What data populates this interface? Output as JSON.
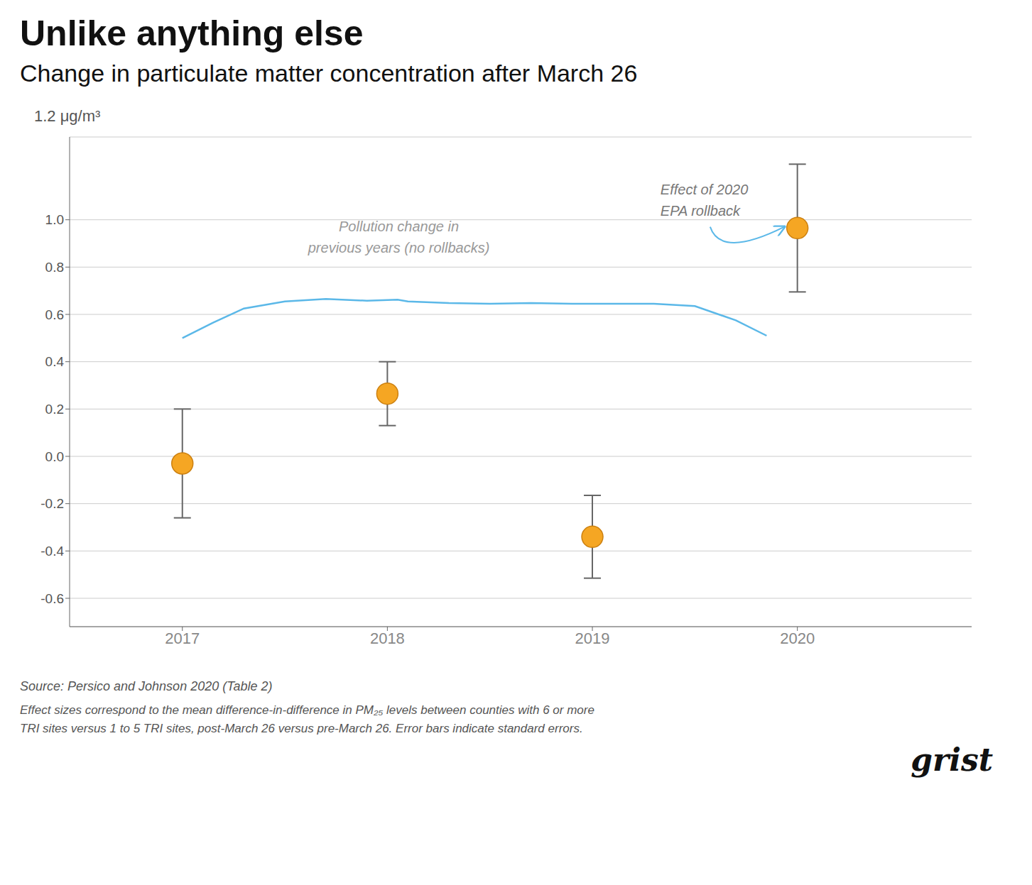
{
  "chart_data": {
    "type": "scatter",
    "title": "Unlike anything else",
    "subtitle": "Change in particulate matter concentration after March 26",
    "ylabel": "1.2 μg/m³",
    "xlim": [
      2016.45,
      2020.85
    ],
    "xticks": [
      2017,
      2018,
      2019,
      2020
    ],
    "ylim": [
      -0.72,
      1.35
    ],
    "yticks": [
      -0.6,
      -0.4,
      -0.2,
      {
        "value": 0,
        "label": "0.0"
      },
      0.2,
      0.4,
      0.6,
      0.8,
      {
        "value": 1,
        "label": "1.0"
      }
    ],
    "grid": true,
    "series": [
      {
        "type": "line",
        "color": "#5BB8E8",
        "x": [
          2017.0,
          2017.15,
          2017.3,
          2017.5,
          2017.7,
          2017.9,
          2018.05,
          2018.1,
          2018.3,
          2018.5,
          2018.7,
          2018.9,
          2019.1,
          2019.3,
          2019.5,
          2019.7,
          2019.85
        ],
        "values": [
          0.5,
          0.565,
          0.625,
          0.655,
          0.665,
          0.658,
          0.662,
          0.655,
          0.648,
          0.645,
          0.648,
          0.645,
          0.645,
          0.645,
          0.635,
          0.575,
          0.51
        ]
      },
      {
        "type": "scatter",
        "color": "#F5A623",
        "x": [
          2017,
          2018,
          2019,
          2020
        ],
        "values": [
          -0.03,
          0.265,
          -0.34,
          0.965
        ],
        "errors": [
          0.23,
          0.135,
          0.175,
          0.27
        ]
      }
    ],
    "annotations": [
      "Effect of 2020\nEPA rollback",
      "Pollution change in\nprevious years (no rollbacks)"
    ],
    "source": "Source: Persico and Johnson 2020 (Table 2)",
    "footnote": "Effect sizes correspond to the mean difference-in-difference in PM₂₅ levels between counties with 6 or more\nTRI sites versus 1 to 5 TRI sites, post-March 26 versus pre-March 26. Error bars indicate standard errors.",
    "logo": "grist"
  }
}
